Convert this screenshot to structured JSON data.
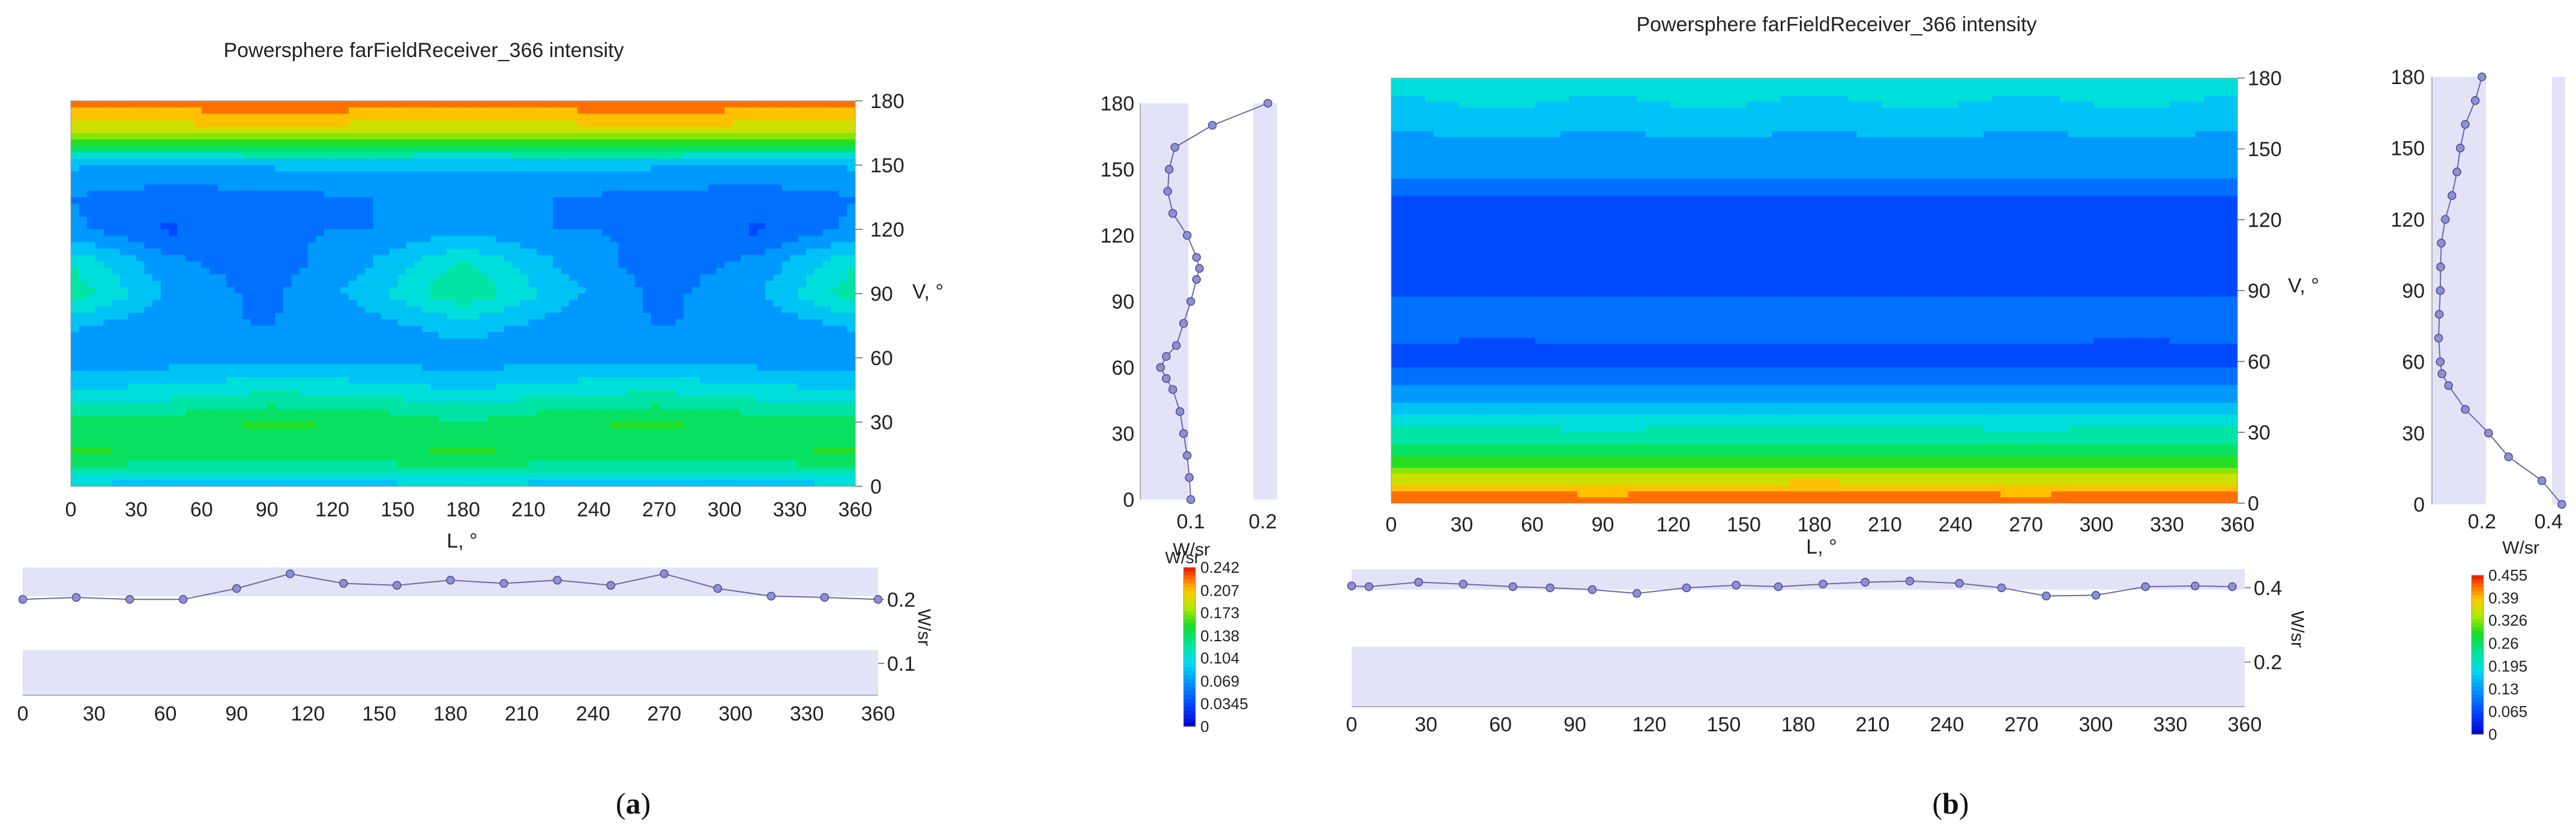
{
  "panels": [
    {
      "id": "a",
      "caption_label": "a",
      "title": "Powersphere farFieldReceiver_366 intensity",
      "heatmap": {
        "type": "heatmap",
        "x_label": "L, °",
        "y_label": "V, °",
        "x_ticks": [
          "0",
          "30",
          "60",
          "90",
          "120",
          "150",
          "180",
          "210",
          "240",
          "270",
          "300",
          "330",
          "360"
        ],
        "y_ticks": [
          "0",
          "30",
          "60",
          "90",
          "120",
          "150",
          "180"
        ],
        "xlim": [
          0,
          360
        ],
        "ylim": [
          0,
          180
        ],
        "zlim": [
          0,
          0.242
        ],
        "x_grid": [
          0,
          45,
          90,
          135,
          180,
          225,
          270,
          315,
          360
        ],
        "y_grid": [
          0,
          15,
          30,
          45,
          60,
          75,
          90,
          105,
          120,
          135,
          150,
          165,
          180
        ],
        "z": [
          [
            0.09,
            0.088,
            0.086,
            0.088,
            0.092,
            0.088,
            0.086,
            0.088,
            0.09
          ],
          [
            0.15,
            0.145,
            0.14,
            0.145,
            0.15,
            0.145,
            0.14,
            0.145,
            0.15
          ],
          [
            0.135,
            0.14,
            0.15,
            0.145,
            0.13,
            0.145,
            0.15,
            0.14,
            0.135
          ],
          [
            0.095,
            0.1,
            0.11,
            0.105,
            0.095,
            0.105,
            0.11,
            0.1,
            0.095
          ],
          [
            0.07,
            0.068,
            0.072,
            0.07,
            0.068,
            0.07,
            0.072,
            0.068,
            0.07
          ],
          [
            0.08,
            0.065,
            0.06,
            0.07,
            0.085,
            0.07,
            0.06,
            0.065,
            0.08
          ],
          [
            0.125,
            0.075,
            0.055,
            0.085,
            0.13,
            0.085,
            0.055,
            0.075,
            0.125
          ],
          [
            0.11,
            0.065,
            0.05,
            0.075,
            0.115,
            0.075,
            0.05,
            0.065,
            0.11
          ],
          [
            0.065,
            0.04,
            0.06,
            0.06,
            0.07,
            0.06,
            0.06,
            0.04,
            0.065
          ],
          [
            0.06,
            0.05,
            0.055,
            0.06,
            0.065,
            0.06,
            0.055,
            0.05,
            0.06
          ],
          [
            0.08,
            0.078,
            0.08,
            0.085,
            0.08,
            0.085,
            0.08,
            0.078,
            0.08
          ],
          [
            0.18,
            0.185,
            0.19,
            0.185,
            0.18,
            0.185,
            0.19,
            0.185,
            0.18
          ],
          [
            0.22,
            0.225,
            0.235,
            0.228,
            0.222,
            0.228,
            0.235,
            0.225,
            0.22
          ]
        ]
      },
      "v_profile": {
        "type": "line",
        "x_label": "W/sr",
        "x_ticks": [
          "0.1",
          "0.2"
        ],
        "xlim": [
          0.03,
          0.22
        ],
        "y_ticks": [
          "0",
          "30",
          "60",
          "90",
          "120",
          "150",
          "180"
        ],
        "ylim": [
          0,
          180
        ],
        "band_range": [
          0.1,
          0.2
        ],
        "v": [
          0,
          10,
          20,
          30,
          40,
          50,
          55,
          60,
          65,
          70,
          80,
          90,
          100,
          105,
          110,
          120,
          130,
          140,
          150,
          160,
          170,
          180
        ],
        "w": [
          0.1,
          0.098,
          0.095,
          0.09,
          0.085,
          0.075,
          0.066,
          0.058,
          0.066,
          0.08,
          0.09,
          0.1,
          0.108,
          0.112,
          0.108,
          0.095,
          0.075,
          0.068,
          0.07,
          0.078,
          0.13,
          0.207
        ]
      },
      "h_profile": {
        "type": "line",
        "y_label": "W/sr",
        "y_ticks": [
          "0.1",
          "0.2"
        ],
        "ylim": [
          0.05,
          0.25
        ],
        "band_range": [
          0.1,
          0.2
        ],
        "x_ticks": [
          "0",
          "30",
          "60",
          "90",
          "120",
          "150",
          "180",
          "210",
          "240",
          "270",
          "300",
          "330",
          "360"
        ],
        "xlim": [
          0,
          360
        ],
        "l": [
          0,
          22.5,
          45,
          67.5,
          90,
          112.5,
          135,
          157.5,
          180,
          202.5,
          225,
          247.5,
          270,
          292.5,
          315,
          337.5,
          360
        ],
        "w": [
          0.2,
          0.203,
          0.2,
          0.2,
          0.217,
          0.24,
          0.225,
          0.222,
          0.23,
          0.225,
          0.23,
          0.222,
          0.24,
          0.217,
          0.205,
          0.203,
          0.2
        ]
      },
      "colorbar": {
        "label": "W/sr",
        "values": [
          "0.242",
          "0.207",
          "0.173",
          "0.138",
          "0.104",
          "0.069",
          "0.0345",
          "0"
        ],
        "max": 0.242
      }
    },
    {
      "id": "b",
      "caption_label": "b",
      "title": "Powersphere farFieldReceiver_366 intensity",
      "heatmap": {
        "type": "heatmap",
        "x_label": "L, °",
        "y_label": "V, °",
        "x_ticks": [
          "0",
          "30",
          "60",
          "90",
          "120",
          "150",
          "180",
          "210",
          "240",
          "270",
          "300",
          "330",
          "360"
        ],
        "y_ticks": [
          "0",
          "30",
          "60",
          "90",
          "120",
          "150",
          "180"
        ],
        "xlim": [
          0,
          360
        ],
        "ylim": [
          0,
          180
        ],
        "zlim": [
          0,
          0.455
        ],
        "x_grid": [
          0,
          45,
          90,
          135,
          180,
          225,
          270,
          315,
          360
        ],
        "y_grid": [
          0,
          10,
          20,
          30,
          40,
          50,
          60,
          70,
          80,
          90,
          100,
          110,
          120,
          130,
          140,
          150,
          160,
          170,
          180
        ],
        "z": [
          [
            0.44,
            0.44,
            0.435,
            0.44,
            0.445,
            0.44,
            0.435,
            0.44,
            0.44
          ],
          [
            0.36,
            0.36,
            0.355,
            0.36,
            0.365,
            0.36,
            0.355,
            0.36,
            0.36
          ],
          [
            0.27,
            0.27,
            0.268,
            0.27,
            0.272,
            0.27,
            0.268,
            0.27,
            0.27
          ],
          [
            0.22,
            0.22,
            0.218,
            0.22,
            0.222,
            0.22,
            0.218,
            0.22,
            0.22
          ],
          [
            0.16,
            0.16,
            0.158,
            0.16,
            0.162,
            0.16,
            0.158,
            0.16,
            0.16
          ],
          [
            0.11,
            0.11,
            0.108,
            0.11,
            0.112,
            0.11,
            0.108,
            0.11,
            0.11
          ],
          [
            0.07,
            0.066,
            0.07,
            0.068,
            0.072,
            0.068,
            0.07,
            0.066,
            0.07
          ],
          [
            0.085,
            0.082,
            0.085,
            0.084,
            0.086,
            0.084,
            0.085,
            0.082,
            0.085
          ],
          [
            0.09,
            0.095,
            0.1,
            0.105,
            0.1,
            0.105,
            0.1,
            0.095,
            0.09
          ],
          [
            0.078,
            0.076,
            0.078,
            0.077,
            0.078,
            0.077,
            0.078,
            0.076,
            0.078
          ],
          [
            0.07,
            0.066,
            0.07,
            0.068,
            0.07,
            0.068,
            0.07,
            0.066,
            0.07
          ],
          [
            0.072,
            0.072,
            0.072,
            0.072,
            0.072,
            0.072,
            0.072,
            0.072,
            0.072
          ],
          [
            0.075,
            0.075,
            0.075,
            0.075,
            0.075,
            0.075,
            0.075,
            0.075,
            0.075
          ],
          [
            0.078,
            0.078,
            0.078,
            0.078,
            0.078,
            0.078,
            0.078,
            0.078,
            0.078
          ],
          [
            0.12,
            0.12,
            0.12,
            0.12,
            0.12,
            0.12,
            0.12,
            0.12,
            0.12
          ],
          [
            0.135,
            0.14,
            0.135,
            0.14,
            0.135,
            0.14,
            0.135,
            0.14,
            0.135
          ],
          [
            0.15,
            0.155,
            0.15,
            0.155,
            0.15,
            0.155,
            0.15,
            0.155,
            0.15
          ],
          [
            0.17,
            0.19,
            0.17,
            0.19,
            0.17,
            0.19,
            0.17,
            0.19,
            0.17
          ],
          [
            0.195,
            0.2,
            0.195,
            0.2,
            0.195,
            0.2,
            0.195,
            0.2,
            0.195
          ]
        ]
      },
      "v_profile": {
        "type": "line",
        "x_label": "W/sr",
        "x_ticks": [
          "0.2",
          "0.4"
        ],
        "xlim": [
          0.05,
          0.45
        ],
        "y_ticks": [
          "0",
          "30",
          "60",
          "90",
          "120",
          "150",
          "180"
        ],
        "ylim": [
          0,
          180
        ],
        "band_range": [
          0.2,
          0.4
        ],
        "v": [
          0,
          10,
          20,
          30,
          40,
          50,
          55,
          60,
          70,
          80,
          90,
          100,
          110,
          120,
          130,
          140,
          150,
          160,
          170,
          180
        ],
        "w": [
          0.44,
          0.38,
          0.28,
          0.22,
          0.15,
          0.1,
          0.08,
          0.075,
          0.07,
          0.072,
          0.075,
          0.076,
          0.078,
          0.09,
          0.11,
          0.125,
          0.135,
          0.15,
          0.18,
          0.2
        ]
      },
      "h_profile": {
        "type": "line",
        "y_label": "W/sr",
        "y_ticks": [
          "0.2",
          "0.4"
        ],
        "ylim": [
          0.08,
          0.45
        ],
        "band_range": [
          0.2,
          0.4
        ],
        "x_ticks": [
          "0",
          "30",
          "60",
          "90",
          "120",
          "150",
          "180",
          "210",
          "240",
          "270",
          "300",
          "330",
          "360"
        ],
        "xlim": [
          0,
          360
        ],
        "l": [
          0,
          7,
          27,
          45,
          65,
          80,
          97,
          115,
          135,
          155,
          172,
          190,
          207,
          225,
          245,
          262,
          280,
          300,
          320,
          340,
          355
        ],
        "w": [
          0.405,
          0.403,
          0.415,
          0.41,
          0.403,
          0.4,
          0.395,
          0.385,
          0.4,
          0.407,
          0.403,
          0.41,
          0.415,
          0.418,
          0.412,
          0.4,
          0.378,
          0.38,
          0.403,
          0.405,
          0.403
        ]
      },
      "colorbar": {
        "label": "W/sr",
        "values": [
          "0.455",
          "0.39",
          "0.326",
          "0.26",
          "0.195",
          "0.13",
          "0.065",
          "0"
        ],
        "max": 0.455
      }
    }
  ]
}
